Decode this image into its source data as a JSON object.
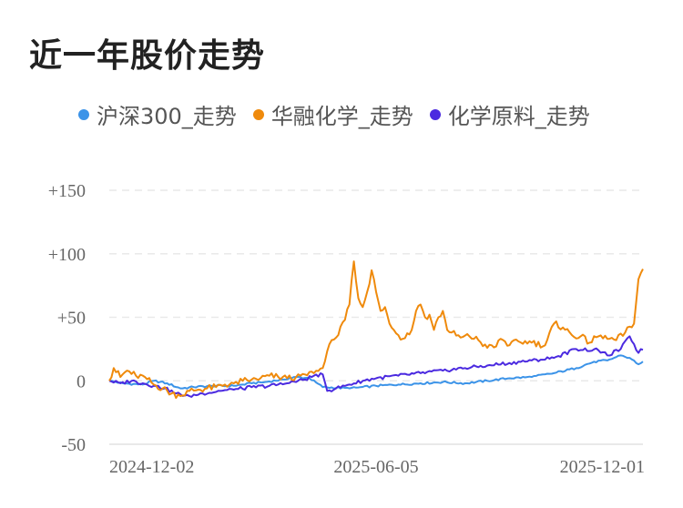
{
  "chart_data": {
    "type": "line",
    "title": "近一年股价走势",
    "xlabel": "",
    "ylabel": "",
    "ylim": [
      -50,
      150
    ],
    "yticks": [
      "+150",
      "+100",
      "+50",
      "0",
      "-50"
    ],
    "ytick_values": [
      150,
      100,
      50,
      0,
      -50
    ],
    "xticks": [
      "2024-12-02",
      "2025-06-05",
      "2025-12-01"
    ],
    "grid": true,
    "legend": "top-left",
    "x_count": 241,
    "series": [
      {
        "name": "沪深300_走势",
        "color": "#3b93e8",
        "anchors": [
          [
            0,
            0
          ],
          [
            6,
            -2
          ],
          [
            15,
            -3
          ],
          [
            20,
            0
          ],
          [
            26,
            -2
          ],
          [
            32,
            -6
          ],
          [
            38,
            -5
          ],
          [
            46,
            -4
          ],
          [
            56,
            -4
          ],
          [
            64,
            -2
          ],
          [
            70,
            -1
          ],
          [
            78,
            1
          ],
          [
            84,
            3
          ],
          [
            90,
            2
          ],
          [
            96,
            -5
          ],
          [
            108,
            -6
          ],
          [
            120,
            -4
          ],
          [
            130,
            -3
          ],
          [
            140,
            -2
          ],
          [
            150,
            -1
          ],
          [
            160,
            -2
          ],
          [
            170,
            0
          ],
          [
            180,
            2
          ],
          [
            190,
            3
          ],
          [
            200,
            6
          ],
          [
            210,
            10
          ],
          [
            218,
            15
          ],
          [
            224,
            16
          ],
          [
            230,
            20
          ],
          [
            234,
            18
          ],
          [
            238,
            13
          ],
          [
            241,
            15
          ]
        ]
      },
      {
        "name": "华融化学_走势",
        "color": "#ef8a0c",
        "anchors": [
          [
            0,
            0
          ],
          [
            2,
            10
          ],
          [
            5,
            3
          ],
          [
            8,
            8
          ],
          [
            12,
            4
          ],
          [
            16,
            3
          ],
          [
            20,
            -3
          ],
          [
            24,
            -6
          ],
          [
            28,
            -10
          ],
          [
            32,
            -12
          ],
          [
            36,
            -8
          ],
          [
            40,
            -7
          ],
          [
            44,
            -6
          ],
          [
            48,
            -5
          ],
          [
            52,
            -3
          ],
          [
            56,
            -2
          ],
          [
            60,
            0
          ],
          [
            64,
            1
          ],
          [
            68,
            2
          ],
          [
            72,
            4
          ],
          [
            76,
            3
          ],
          [
            80,
            2
          ],
          [
            84,
            3
          ],
          [
            88,
            5
          ],
          [
            92,
            6
          ],
          [
            96,
            10
          ],
          [
            100,
            32
          ],
          [
            103,
            36
          ],
          [
            106,
            48
          ],
          [
            108,
            60
          ],
          [
            110,
            94
          ],
          [
            112,
            65
          ],
          [
            114,
            58
          ],
          [
            116,
            70
          ],
          [
            118,
            87
          ],
          [
            120,
            70
          ],
          [
            122,
            55
          ],
          [
            124,
            58
          ],
          [
            126,
            45
          ],
          [
            128,
            40
          ],
          [
            132,
            33
          ],
          [
            136,
            40
          ],
          [
            138,
            55
          ],
          [
            140,
            60
          ],
          [
            142,
            50
          ],
          [
            144,
            52
          ],
          [
            146,
            40
          ],
          [
            148,
            50
          ],
          [
            150,
            55
          ],
          [
            152,
            40
          ],
          [
            154,
            38
          ],
          [
            158,
            34
          ],
          [
            162,
            35
          ],
          [
            166,
            32
          ],
          [
            170,
            26
          ],
          [
            174,
            27
          ],
          [
            176,
            33
          ],
          [
            180,
            28
          ],
          [
            184,
            31
          ],
          [
            190,
            30
          ],
          [
            196,
            28
          ],
          [
            200,
            45
          ],
          [
            204,
            42
          ],
          [
            208,
            36
          ],
          [
            212,
            35
          ],
          [
            216,
            30
          ],
          [
            220,
            35
          ],
          [
            224,
            33
          ],
          [
            228,
            32
          ],
          [
            232,
            38
          ],
          [
            236,
            45
          ],
          [
            238,
            80
          ],
          [
            240,
            88
          ],
          [
            241,
            113
          ]
        ]
      },
      {
        "name": "化学原料_走势",
        "color": "#4b2ae0",
        "anchors": [
          [
            0,
            0
          ],
          [
            5,
            -2
          ],
          [
            10,
            0
          ],
          [
            15,
            -2
          ],
          [
            20,
            -4
          ],
          [
            25,
            -6
          ],
          [
            30,
            -10
          ],
          [
            36,
            -12
          ],
          [
            42,
            -10
          ],
          [
            50,
            -8
          ],
          [
            56,
            -7
          ],
          [
            64,
            -5
          ],
          [
            72,
            -4
          ],
          [
            80,
            -2
          ],
          [
            88,
            1
          ],
          [
            92,
            4
          ],
          [
            96,
            5
          ],
          [
            98,
            -8
          ],
          [
            102,
            -6
          ],
          [
            108,
            -3
          ],
          [
            114,
            0
          ],
          [
            120,
            2
          ],
          [
            130,
            4
          ],
          [
            140,
            6
          ],
          [
            150,
            8
          ],
          [
            160,
            10
          ],
          [
            170,
            12
          ],
          [
            180,
            14
          ],
          [
            190,
            16
          ],
          [
            200,
            18
          ],
          [
            210,
            25
          ],
          [
            220,
            24
          ],
          [
            224,
            20
          ],
          [
            230,
            25
          ],
          [
            234,
            35
          ],
          [
            238,
            22
          ],
          [
            241,
            27
          ]
        ]
      }
    ]
  }
}
